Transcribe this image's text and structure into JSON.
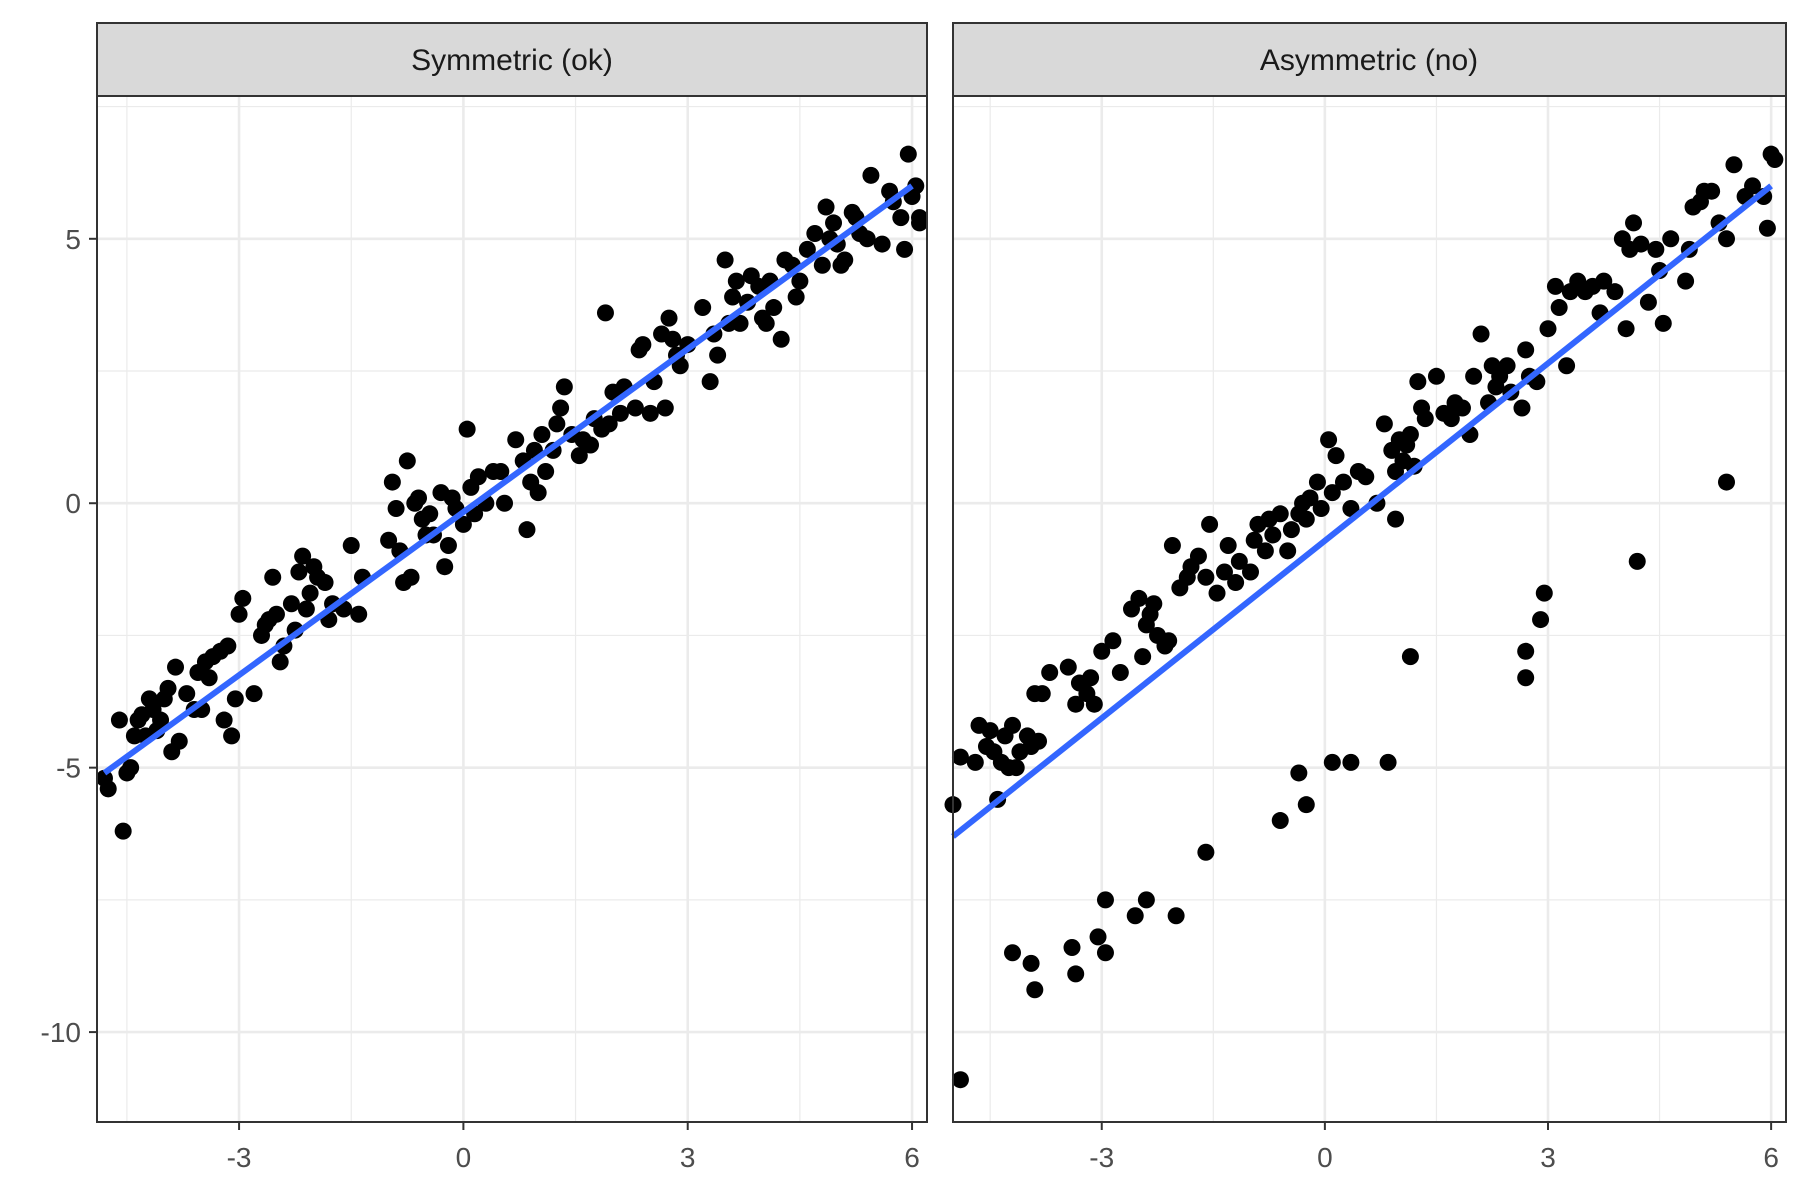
{
  "chart_data": [
    {
      "type": "scatter",
      "title": "Symmetric (ok)",
      "xlim": [
        -4.9,
        6.2
      ],
      "ylim": [
        -11.7,
        7.7
      ],
      "x_ticks": [
        "-3",
        "0",
        "3",
        "6"
      ],
      "y_ticks": [
        "5",
        "0",
        "-5",
        "-10"
      ],
      "grid": true,
      "fit_line": {
        "x": [
          -4.8,
          6.0
        ],
        "y": [
          -5.1,
          6.0
        ],
        "color": "#3366FF"
      },
      "points": [
        [
          -4.8,
          -5.2
        ],
        [
          -4.75,
          -5.4
        ],
        [
          -4.6,
          -4.1
        ],
        [
          -4.55,
          -6.2
        ],
        [
          -4.5,
          -5.1
        ],
        [
          -4.45,
          -5.0
        ],
        [
          -4.4,
          -4.4
        ],
        [
          -4.35,
          -4.1
        ],
        [
          -4.3,
          -4.0
        ],
        [
          -4.25,
          -4.4
        ],
        [
          -4.2,
          -3.7
        ],
        [
          -4.15,
          -3.9
        ],
        [
          -4.1,
          -4.3
        ],
        [
          -4.05,
          -4.1
        ],
        [
          -4.0,
          -3.7
        ],
        [
          -3.95,
          -3.5
        ],
        [
          -3.9,
          -4.7
        ],
        [
          -3.85,
          -3.1
        ],
        [
          -3.8,
          -4.5
        ],
        [
          -3.7,
          -3.6
        ],
        [
          -3.6,
          -3.9
        ],
        [
          -3.55,
          -3.2
        ],
        [
          -3.5,
          -3.9
        ],
        [
          -3.45,
          -3.0
        ],
        [
          -3.4,
          -3.3
        ],
        [
          -3.35,
          -2.9
        ],
        [
          -3.25,
          -2.8
        ],
        [
          -3.2,
          -4.1
        ],
        [
          -3.15,
          -2.7
        ],
        [
          -3.1,
          -4.4
        ],
        [
          -3.05,
          -3.7
        ],
        [
          -3.0,
          -2.1
        ],
        [
          -2.95,
          -1.8
        ],
        [
          -2.8,
          -3.6
        ],
        [
          -2.7,
          -2.5
        ],
        [
          -2.65,
          -2.3
        ],
        [
          -2.6,
          -2.2
        ],
        [
          -2.55,
          -1.4
        ],
        [
          -2.5,
          -2.1
        ],
        [
          -2.45,
          -3.0
        ],
        [
          -2.4,
          -2.7
        ],
        [
          -2.3,
          -1.9
        ],
        [
          -2.25,
          -2.4
        ],
        [
          -2.2,
          -1.3
        ],
        [
          -2.15,
          -1.0
        ],
        [
          -2.1,
          -2.0
        ],
        [
          -2.05,
          -1.7
        ],
        [
          -2.0,
          -1.2
        ],
        [
          -1.95,
          -1.4
        ],
        [
          -1.85,
          -1.5
        ],
        [
          -1.8,
          -2.2
        ],
        [
          -1.75,
          -1.9
        ],
        [
          -1.6,
          -2.0
        ],
        [
          -1.5,
          -0.8
        ],
        [
          -1.4,
          -2.1
        ],
        [
          -1.35,
          -1.4
        ],
        [
          -1.0,
          -0.7
        ],
        [
          -0.95,
          0.4
        ],
        [
          -0.9,
          -0.1
        ],
        [
          -0.85,
          -0.9
        ],
        [
          -0.8,
          -1.5
        ],
        [
          -0.75,
          0.8
        ],
        [
          -0.7,
          -1.4
        ],
        [
          -0.65,
          0.0
        ],
        [
          -0.6,
          0.1
        ],
        [
          -0.55,
          -0.3
        ],
        [
          -0.5,
          -0.6
        ],
        [
          -0.45,
          -0.2
        ],
        [
          -0.4,
          -0.6
        ],
        [
          -0.3,
          0.2
        ],
        [
          -0.25,
          -1.2
        ],
        [
          -0.2,
          -0.8
        ],
        [
          -0.15,
          0.1
        ],
        [
          -0.1,
          -0.1
        ],
        [
          0.0,
          -0.4
        ],
        [
          0.05,
          1.4
        ],
        [
          0.1,
          0.3
        ],
        [
          0.15,
          -0.2
        ],
        [
          0.2,
          0.5
        ],
        [
          0.3,
          0.0
        ],
        [
          0.4,
          0.6
        ],
        [
          0.5,
          0.6
        ],
        [
          0.55,
          0.0
        ],
        [
          0.7,
          1.2
        ],
        [
          0.8,
          0.8
        ],
        [
          0.85,
          -0.5
        ],
        [
          0.9,
          0.4
        ],
        [
          0.95,
          1.0
        ],
        [
          1.0,
          0.2
        ],
        [
          1.05,
          1.3
        ],
        [
          1.1,
          0.6
        ],
        [
          1.2,
          1.0
        ],
        [
          1.25,
          1.5
        ],
        [
          1.3,
          1.8
        ],
        [
          1.35,
          2.2
        ],
        [
          1.45,
          1.3
        ],
        [
          1.55,
          0.9
        ],
        [
          1.6,
          1.2
        ],
        [
          1.7,
          1.1
        ],
        [
          1.75,
          1.6
        ],
        [
          1.85,
          1.4
        ],
        [
          1.9,
          3.6
        ],
        [
          1.95,
          1.5
        ],
        [
          2.0,
          2.1
        ],
        [
          2.1,
          1.7
        ],
        [
          2.15,
          2.2
        ],
        [
          2.3,
          1.8
        ],
        [
          2.35,
          2.9
        ],
        [
          2.4,
          3.0
        ],
        [
          2.5,
          1.7
        ],
        [
          2.55,
          2.3
        ],
        [
          2.65,
          3.2
        ],
        [
          2.7,
          1.8
        ],
        [
          2.75,
          3.5
        ],
        [
          2.8,
          3.1
        ],
        [
          2.85,
          2.8
        ],
        [
          2.9,
          2.6
        ],
        [
          3.0,
          3.0
        ],
        [
          3.2,
          3.7
        ],
        [
          3.3,
          2.3
        ],
        [
          3.35,
          3.2
        ],
        [
          3.4,
          2.8
        ],
        [
          3.5,
          4.6
        ],
        [
          3.55,
          3.4
        ],
        [
          3.6,
          3.9
        ],
        [
          3.65,
          4.2
        ],
        [
          3.7,
          3.4
        ],
        [
          3.8,
          3.8
        ],
        [
          3.85,
          4.3
        ],
        [
          3.95,
          4.1
        ],
        [
          4.0,
          3.5
        ],
        [
          4.05,
          3.4
        ],
        [
          4.1,
          4.2
        ],
        [
          4.15,
          3.7
        ],
        [
          4.25,
          3.1
        ],
        [
          4.3,
          4.6
        ],
        [
          4.4,
          4.5
        ],
        [
          4.45,
          3.9
        ],
        [
          4.5,
          4.2
        ],
        [
          4.6,
          4.8
        ],
        [
          4.7,
          5.1
        ],
        [
          4.8,
          4.5
        ],
        [
          4.85,
          5.6
        ],
        [
          4.9,
          5.0
        ],
        [
          4.95,
          5.3
        ],
        [
          5.0,
          4.9
        ],
        [
          5.05,
          4.5
        ],
        [
          5.1,
          4.6
        ],
        [
          5.2,
          5.5
        ],
        [
          5.25,
          5.4
        ],
        [
          5.3,
          5.1
        ],
        [
          5.4,
          5.0
        ],
        [
          5.45,
          6.2
        ],
        [
          5.6,
          4.9
        ],
        [
          5.7,
          5.9
        ],
        [
          5.75,
          5.7
        ],
        [
          5.85,
          5.4
        ],
        [
          5.9,
          4.8
        ],
        [
          5.95,
          6.6
        ],
        [
          6.0,
          5.8
        ],
        [
          6.05,
          6.0
        ],
        [
          6.1,
          5.3
        ],
        [
          6.1,
          5.4
        ]
      ]
    },
    {
      "type": "scatter",
      "title": "Asymmetric (no)",
      "xlim": [
        -5.0,
        6.2
      ],
      "ylim": [
        -11.7,
        7.7
      ],
      "x_ticks": [
        "-3",
        "0",
        "3",
        "6"
      ],
      "y_ticks": [],
      "grid": true,
      "fit_line": {
        "x": [
          -5.0,
          6.0
        ],
        "y": [
          -6.3,
          6.0
        ],
        "color": "#3366FF"
      },
      "points": [
        [
          -5.0,
          -5.7
        ],
        [
          -4.9,
          -4.8
        ],
        [
          -4.7,
          -4.9
        ],
        [
          -4.65,
          -4.2
        ],
        [
          -4.55,
          -4.6
        ],
        [
          -4.5,
          -4.3
        ],
        [
          -4.45,
          -4.7
        ],
        [
          -4.4,
          -5.6
        ],
        [
          -4.35,
          -4.9
        ],
        [
          -4.3,
          -4.4
        ],
        [
          -4.25,
          -5.0
        ],
        [
          -4.2,
          -4.2
        ],
        [
          -4.15,
          -5.0
        ],
        [
          -4.1,
          -4.7
        ],
        [
          -4.0,
          -4.4
        ],
        [
          -3.95,
          -4.6
        ],
        [
          -3.9,
          -3.6
        ],
        [
          -3.85,
          -4.5
        ],
        [
          -3.8,
          -3.6
        ],
        [
          -3.7,
          -3.2
        ],
        [
          -3.45,
          -3.1
        ],
        [
          -3.35,
          -3.8
        ],
        [
          -3.3,
          -3.4
        ],
        [
          -3.2,
          -3.6
        ],
        [
          -3.15,
          -3.3
        ],
        [
          -3.1,
          -3.8
        ],
        [
          -3.0,
          -2.8
        ],
        [
          -2.85,
          -2.6
        ],
        [
          -2.75,
          -3.2
        ],
        [
          -2.6,
          -2.0
        ],
        [
          -2.5,
          -1.8
        ],
        [
          -2.45,
          -2.9
        ],
        [
          -2.4,
          -2.3
        ],
        [
          -2.35,
          -2.1
        ],
        [
          -2.3,
          -1.9
        ],
        [
          -2.25,
          -2.5
        ],
        [
          -2.15,
          -2.7
        ],
        [
          -2.1,
          -2.6
        ],
        [
          -2.05,
          -0.8
        ],
        [
          -1.95,
          -1.6
        ],
        [
          -1.85,
          -1.4
        ],
        [
          -1.8,
          -1.2
        ],
        [
          -1.7,
          -1.0
        ],
        [
          -1.6,
          -1.4
        ],
        [
          -1.55,
          -0.4
        ],
        [
          -1.45,
          -1.7
        ],
        [
          -1.35,
          -1.3
        ],
        [
          -1.3,
          -0.8
        ],
        [
          -1.2,
          -1.5
        ],
        [
          -1.15,
          -1.1
        ],
        [
          -1.0,
          -1.3
        ],
        [
          -0.95,
          -0.7
        ],
        [
          -0.9,
          -0.4
        ],
        [
          -0.8,
          -0.9
        ],
        [
          -0.75,
          -0.3
        ],
        [
          -0.7,
          -0.6
        ],
        [
          -0.6,
          -0.2
        ],
        [
          -0.5,
          -0.9
        ],
        [
          -0.45,
          -0.5
        ],
        [
          -0.35,
          -0.2
        ],
        [
          -0.3,
          0.0
        ],
        [
          -0.25,
          -0.3
        ],
        [
          -0.2,
          0.1
        ],
        [
          -0.1,
          0.4
        ],
        [
          -0.05,
          -0.1
        ],
        [
          0.05,
          1.2
        ],
        [
          0.1,
          0.2
        ],
        [
          0.15,
          0.9
        ],
        [
          0.25,
          0.4
        ],
        [
          0.35,
          -0.1
        ],
        [
          0.45,
          0.6
        ],
        [
          0.55,
          0.5
        ],
        [
          0.7,
          0.0
        ],
        [
          0.8,
          1.5
        ],
        [
          0.9,
          1.0
        ],
        [
          0.95,
          0.6
        ],
        [
          1.0,
          1.2
        ],
        [
          1.05,
          0.8
        ],
        [
          1.1,
          1.1
        ],
        [
          1.15,
          1.3
        ],
        [
          1.2,
          0.7
        ],
        [
          1.25,
          2.3
        ],
        [
          1.3,
          1.8
        ],
        [
          1.35,
          1.6
        ],
        [
          1.5,
          2.4
        ],
        [
          1.6,
          1.7
        ],
        [
          1.7,
          1.6
        ],
        [
          1.75,
          1.9
        ],
        [
          1.85,
          1.8
        ],
        [
          1.95,
          1.3
        ],
        [
          2.0,
          2.4
        ],
        [
          2.1,
          3.2
        ],
        [
          2.2,
          1.9
        ],
        [
          2.25,
          2.6
        ],
        [
          2.3,
          2.2
        ],
        [
          2.35,
          2.4
        ],
        [
          2.45,
          2.6
        ],
        [
          2.5,
          2.1
        ],
        [
          2.65,
          1.8
        ],
        [
          2.7,
          2.9
        ],
        [
          2.75,
          2.4
        ],
        [
          2.85,
          2.3
        ],
        [
          3.0,
          3.3
        ],
        [
          3.1,
          4.1
        ],
        [
          3.15,
          3.7
        ],
        [
          3.25,
          2.6
        ],
        [
          3.3,
          4.0
        ],
        [
          3.4,
          4.2
        ],
        [
          3.5,
          4.0
        ],
        [
          3.6,
          4.1
        ],
        [
          3.7,
          3.6
        ],
        [
          3.75,
          4.2
        ],
        [
          3.9,
          4.0
        ],
        [
          4.0,
          5.0
        ],
        [
          4.05,
          3.3
        ],
        [
          4.1,
          4.8
        ],
        [
          4.15,
          5.3
        ],
        [
          4.25,
          4.9
        ],
        [
          4.35,
          3.8
        ],
        [
          4.45,
          4.8
        ],
        [
          4.5,
          4.4
        ],
        [
          4.55,
          3.4
        ],
        [
          4.65,
          5.0
        ],
        [
          4.85,
          4.2
        ],
        [
          4.9,
          4.8
        ],
        [
          4.95,
          5.6
        ],
        [
          5.05,
          5.7
        ],
        [
          5.1,
          5.9
        ],
        [
          5.2,
          5.9
        ],
        [
          5.3,
          5.3
        ],
        [
          5.4,
          5.0
        ],
        [
          5.5,
          6.4
        ],
        [
          5.65,
          5.8
        ],
        [
          5.75,
          6.0
        ],
        [
          5.9,
          5.8
        ],
        [
          5.95,
          5.2
        ],
        [
          6.0,
          6.6
        ],
        [
          6.05,
          6.5
        ],
        [
          -4.9,
          -10.9
        ],
        [
          -4.2,
          -8.5
        ],
        [
          -3.95,
          -8.7
        ],
        [
          -3.9,
          -9.2
        ],
        [
          -3.4,
          -8.4
        ],
        [
          -3.35,
          -8.9
        ],
        [
          -3.05,
          -8.2
        ],
        [
          -2.95,
          -8.5
        ],
        [
          -2.95,
          -7.5
        ],
        [
          -2.55,
          -7.8
        ],
        [
          -2.4,
          -7.5
        ],
        [
          -2.0,
          -7.8
        ],
        [
          -1.6,
          -6.6
        ],
        [
          -0.6,
          -6.0
        ],
        [
          -0.35,
          -5.1
        ],
        [
          -0.25,
          -5.7
        ],
        [
          0.1,
          -4.9
        ],
        [
          0.35,
          -4.9
        ],
        [
          0.85,
          -4.9
        ],
        [
          0.95,
          -0.3
        ],
        [
          1.15,
          -2.9
        ],
        [
          2.7,
          -2.8
        ],
        [
          2.7,
          -3.3
        ],
        [
          2.9,
          -2.2
        ],
        [
          2.95,
          -1.7
        ],
        [
          4.2,
          -1.1
        ],
        [
          5.4,
          0.4
        ]
      ]
    }
  ]
}
